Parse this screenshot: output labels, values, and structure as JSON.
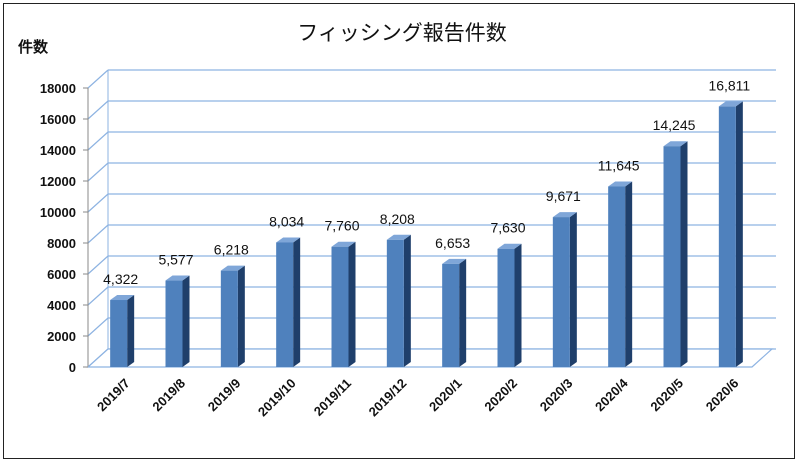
{
  "chart_data": {
    "type": "bar",
    "title": "フィッシング報告件数",
    "ylabel": "件数",
    "xlabel": "",
    "ylim": [
      0,
      18000
    ],
    "yticks": [
      0,
      2000,
      4000,
      6000,
      8000,
      10000,
      12000,
      14000,
      16000,
      18000
    ],
    "grid": true,
    "legend": "none",
    "bar_color": "#4F81BD",
    "categories": [
      "2019/7",
      "2019/8",
      "2019/9",
      "2019/10",
      "2019/11",
      "2019/12",
      "2020/1",
      "2020/2",
      "2020/3",
      "2020/4",
      "2020/5",
      "2020/6"
    ],
    "values": [
      4322,
      5577,
      6218,
      8034,
      7760,
      8208,
      6653,
      7630,
      9671,
      11645,
      14245,
      16811
    ],
    "data_labels": [
      "4,322",
      "5,577",
      "6,218",
      "8,034",
      "7,760",
      "8,208",
      "6,653",
      "7,630",
      "9,671",
      "11,645",
      "14,245",
      "16,811"
    ]
  }
}
